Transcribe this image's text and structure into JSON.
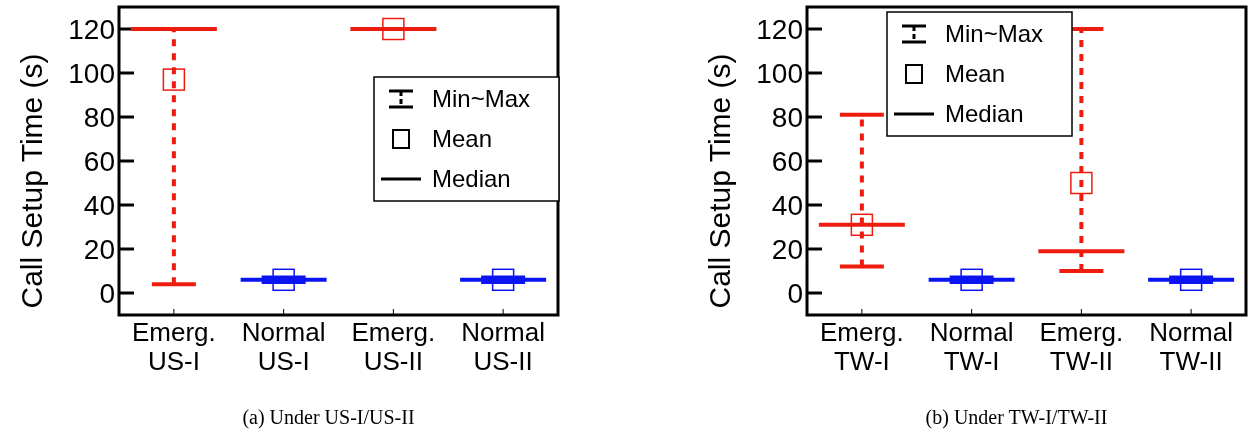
{
  "chart_data": [
    {
      "type": "box",
      "title": "(a) Under US-I/US-II",
      "ylabel": "Call Setup Time (s)",
      "categories": [
        "Emerg.\nUS-I",
        "Normal\nUS-I",
        "Emerg.\nUS-II",
        "Normal\nUS-II"
      ],
      "colors": [
        "#ee1c0e",
        "#0a14f0",
        "#ee1c0e",
        "#0a14f0"
      ],
      "boxes": [
        {
          "low": 4,
          "q1": 120,
          "median": 120,
          "q3": 120,
          "high": 120,
          "mean": 97
        },
        {
          "low": 5,
          "q1": 6,
          "median": 6,
          "q3": 6,
          "high": 7,
          "mean": 6
        },
        {
          "low": 120,
          "q1": 120,
          "median": 120,
          "q3": 120,
          "high": 120,
          "mean": 120
        },
        {
          "low": 5,
          "q1": 6,
          "median": 6,
          "q3": 6,
          "high": 7,
          "mean": 6
        }
      ],
      "ylim": [
        -10,
        130
      ],
      "yticks": [
        0,
        20,
        40,
        60,
        80,
        100,
        120
      ],
      "annotations": [
        "Min~Max",
        "Mean",
        "Median"
      ]
    },
    {
      "type": "box",
      "title": "(b) Under TW-I/TW-II",
      "ylabel": "Call Setup Time (s)",
      "categories": [
        "Emerg.\nTW-I",
        "Normal\nTW-I",
        "Emerg.\nTW-II",
        "Normal\nTW-II"
      ],
      "colors": [
        "#ee1c0e",
        "#0a14f0",
        "#ee1c0e",
        "#0a14f0"
      ],
      "boxes": [
        {
          "low": 12,
          "q1": 31,
          "median": 31,
          "q3": 31,
          "high": 81,
          "mean": 31
        },
        {
          "low": 5,
          "q1": 6,
          "median": 6,
          "q3": 6,
          "high": 7,
          "mean": 6
        },
        {
          "low": 10,
          "q1": 19,
          "median": 19,
          "q3": 19,
          "high": 120,
          "mean": 50
        },
        {
          "low": 5,
          "q1": 6,
          "median": 6,
          "q3": 6,
          "high": 7,
          "mean": 6
        }
      ],
      "ylim": [
        -10,
        130
      ],
      "yticks": [
        0,
        20,
        40,
        60,
        80,
        100,
        120
      ],
      "annotations": [
        "Min~Max",
        "Mean",
        "Median"
      ]
    }
  ]
}
